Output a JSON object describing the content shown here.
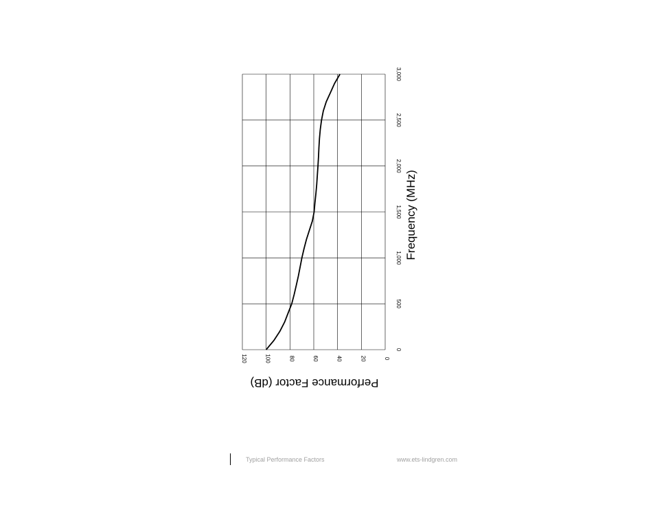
{
  "chart_data": {
    "type": "line",
    "xlabel": "Frequency (MHz)",
    "ylabel": "Performance Factor (dB)",
    "xlim": [
      0,
      3000
    ],
    "ylim": [
      0,
      120
    ],
    "x_ticks": [
      "0",
      "500",
      "1,000",
      "1,500",
      "2,000",
      "2,500",
      "3,000"
    ],
    "y_ticks": [
      "0",
      "20",
      "40",
      "60",
      "80",
      "100",
      "120"
    ],
    "grid": true,
    "orientation": "rotated 90° clockwise",
    "series": [
      {
        "x": [
          0,
          100,
          200,
          300,
          400,
          500,
          600,
          700,
          800,
          900,
          1000,
          1100,
          1200,
          1300,
          1400,
          1500,
          1600,
          1700,
          1800,
          1900,
          2000,
          2100,
          2200,
          2300,
          2400,
          2500,
          2600,
          2700,
          2800,
          2900,
          3000
        ],
        "y": [
          100,
          93.5,
          88.5,
          84.5,
          81.5,
          78.5,
          76.5,
          74.7,
          73,
          71.5,
          70,
          68.2,
          66.2,
          63.7,
          61.2,
          59.7,
          59,
          58.2,
          57.5,
          57,
          56.5,
          56,
          55.7,
          55.2,
          54.5,
          53.5,
          52,
          49.5,
          46,
          42.5,
          38
        ]
      }
    ]
  },
  "footer": {
    "left": "Typical Performance Factors",
    "right": "www.ets-lindgren.com"
  }
}
